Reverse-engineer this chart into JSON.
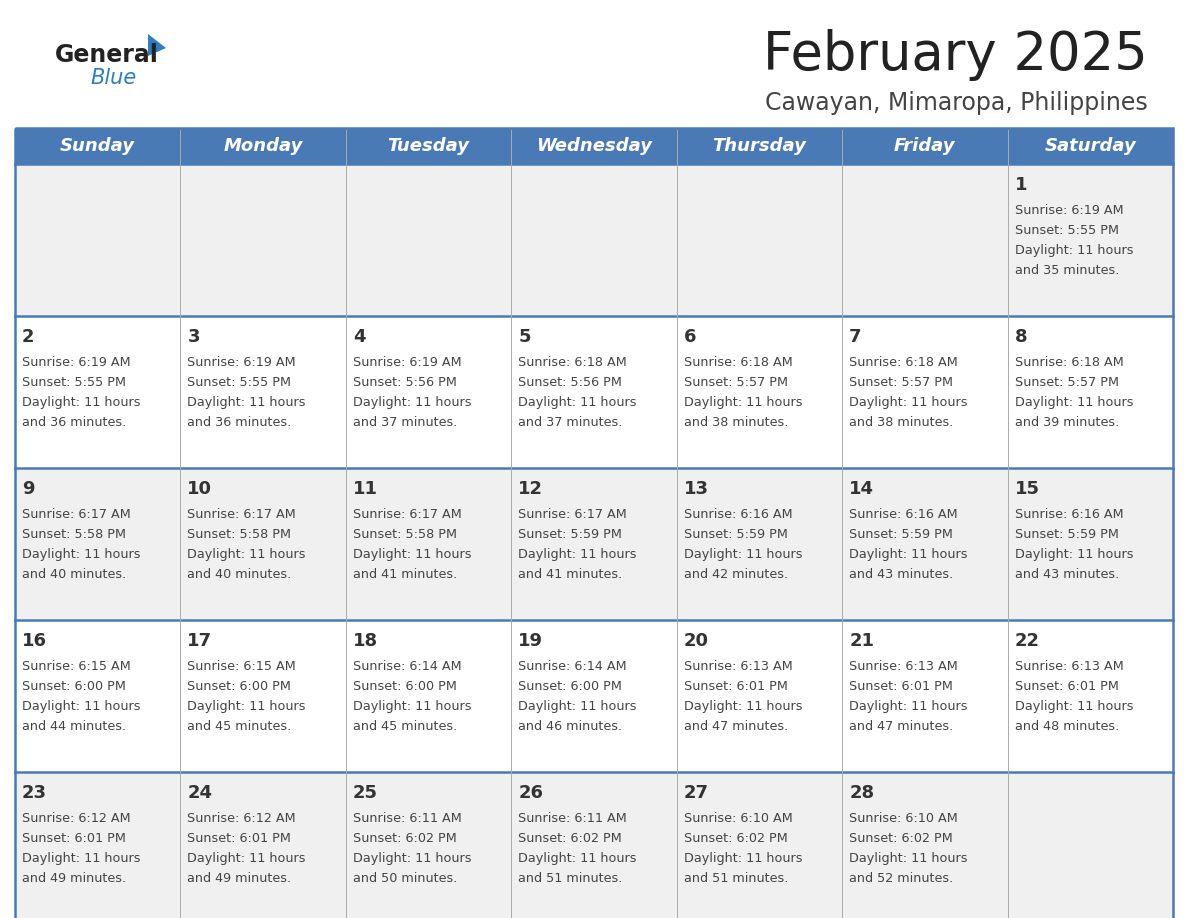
{
  "title": "February 2025",
  "subtitle": "Cawayan, Mimaropa, Philippines",
  "days_of_week": [
    "Sunday",
    "Monday",
    "Tuesday",
    "Wednesday",
    "Thursday",
    "Friday",
    "Saturday"
  ],
  "header_bg": "#4a7ab5",
  "header_text": "#ffffff",
  "row_bg_even": "#f0f0f0",
  "row_bg_odd": "#ffffff",
  "border_color": "#4a7ab5",
  "sep_line_color": "#6699cc",
  "day_num_color": "#333333",
  "cell_text_color": "#444444",
  "title_color": "#222222",
  "subtitle_color": "#444444",
  "logo_general_color": "#222222",
  "logo_blue_color": "#2e7ec1",
  "calendar_data": [
    [
      null,
      null,
      null,
      null,
      null,
      null,
      {
        "day": 1,
        "sunrise": "6:19 AM",
        "sunset": "5:55 PM",
        "daylight_h": "11 hours",
        "daylight_m": "and 35 minutes."
      }
    ],
    [
      {
        "day": 2,
        "sunrise": "6:19 AM",
        "sunset": "5:55 PM",
        "daylight_h": "11 hours",
        "daylight_m": "and 36 minutes."
      },
      {
        "day": 3,
        "sunrise": "6:19 AM",
        "sunset": "5:55 PM",
        "daylight_h": "11 hours",
        "daylight_m": "and 36 minutes."
      },
      {
        "day": 4,
        "sunrise": "6:19 AM",
        "sunset": "5:56 PM",
        "daylight_h": "11 hours",
        "daylight_m": "and 37 minutes."
      },
      {
        "day": 5,
        "sunrise": "6:18 AM",
        "sunset": "5:56 PM",
        "daylight_h": "11 hours",
        "daylight_m": "and 37 minutes."
      },
      {
        "day": 6,
        "sunrise": "6:18 AM",
        "sunset": "5:57 PM",
        "daylight_h": "11 hours",
        "daylight_m": "and 38 minutes."
      },
      {
        "day": 7,
        "sunrise": "6:18 AM",
        "sunset": "5:57 PM",
        "daylight_h": "11 hours",
        "daylight_m": "and 38 minutes."
      },
      {
        "day": 8,
        "sunrise": "6:18 AM",
        "sunset": "5:57 PM",
        "daylight_h": "11 hours",
        "daylight_m": "and 39 minutes."
      }
    ],
    [
      {
        "day": 9,
        "sunrise": "6:17 AM",
        "sunset": "5:58 PM",
        "daylight_h": "11 hours",
        "daylight_m": "and 40 minutes."
      },
      {
        "day": 10,
        "sunrise": "6:17 AM",
        "sunset": "5:58 PM",
        "daylight_h": "11 hours",
        "daylight_m": "and 40 minutes."
      },
      {
        "day": 11,
        "sunrise": "6:17 AM",
        "sunset": "5:58 PM",
        "daylight_h": "11 hours",
        "daylight_m": "and 41 minutes."
      },
      {
        "day": 12,
        "sunrise": "6:17 AM",
        "sunset": "5:59 PM",
        "daylight_h": "11 hours",
        "daylight_m": "and 41 minutes."
      },
      {
        "day": 13,
        "sunrise": "6:16 AM",
        "sunset": "5:59 PM",
        "daylight_h": "11 hours",
        "daylight_m": "and 42 minutes."
      },
      {
        "day": 14,
        "sunrise": "6:16 AM",
        "sunset": "5:59 PM",
        "daylight_h": "11 hours",
        "daylight_m": "and 43 minutes."
      },
      {
        "day": 15,
        "sunrise": "6:16 AM",
        "sunset": "5:59 PM",
        "daylight_h": "11 hours",
        "daylight_m": "and 43 minutes."
      }
    ],
    [
      {
        "day": 16,
        "sunrise": "6:15 AM",
        "sunset": "6:00 PM",
        "daylight_h": "11 hours",
        "daylight_m": "and 44 minutes."
      },
      {
        "day": 17,
        "sunrise": "6:15 AM",
        "sunset": "6:00 PM",
        "daylight_h": "11 hours",
        "daylight_m": "and 45 minutes."
      },
      {
        "day": 18,
        "sunrise": "6:14 AM",
        "sunset": "6:00 PM",
        "daylight_h": "11 hours",
        "daylight_m": "and 45 minutes."
      },
      {
        "day": 19,
        "sunrise": "6:14 AM",
        "sunset": "6:00 PM",
        "daylight_h": "11 hours",
        "daylight_m": "and 46 minutes."
      },
      {
        "day": 20,
        "sunrise": "6:13 AM",
        "sunset": "6:01 PM",
        "daylight_h": "11 hours",
        "daylight_m": "and 47 minutes."
      },
      {
        "day": 21,
        "sunrise": "6:13 AM",
        "sunset": "6:01 PM",
        "daylight_h": "11 hours",
        "daylight_m": "and 47 minutes."
      },
      {
        "day": 22,
        "sunrise": "6:13 AM",
        "sunset": "6:01 PM",
        "daylight_h": "11 hours",
        "daylight_m": "and 48 minutes."
      }
    ],
    [
      {
        "day": 23,
        "sunrise": "6:12 AM",
        "sunset": "6:01 PM",
        "daylight_h": "11 hours",
        "daylight_m": "and 49 minutes."
      },
      {
        "day": 24,
        "sunrise": "6:12 AM",
        "sunset": "6:01 PM",
        "daylight_h": "11 hours",
        "daylight_m": "and 49 minutes."
      },
      {
        "day": 25,
        "sunrise": "6:11 AM",
        "sunset": "6:02 PM",
        "daylight_h": "11 hours",
        "daylight_m": "and 50 minutes."
      },
      {
        "day": 26,
        "sunrise": "6:11 AM",
        "sunset": "6:02 PM",
        "daylight_h": "11 hours",
        "daylight_m": "and 51 minutes."
      },
      {
        "day": 27,
        "sunrise": "6:10 AM",
        "sunset": "6:02 PM",
        "daylight_h": "11 hours",
        "daylight_m": "and 51 minutes."
      },
      {
        "day": 28,
        "sunrise": "6:10 AM",
        "sunset": "6:02 PM",
        "daylight_h": "11 hours",
        "daylight_m": "and 52 minutes."
      },
      null
    ]
  ]
}
